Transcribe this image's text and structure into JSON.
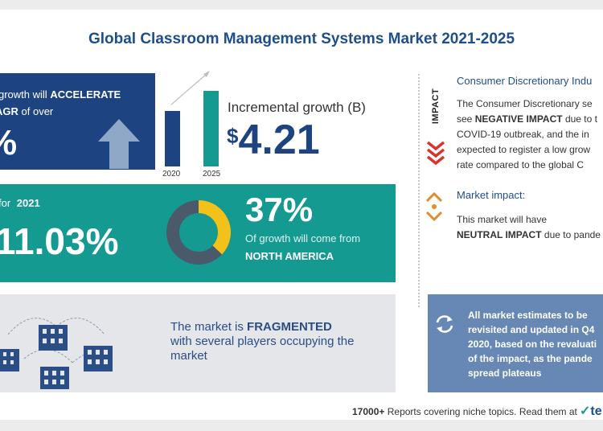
{
  "title": "Global Classroom Management Systems Market 2021-2025",
  "growth": {
    "line1_pre": "growth will",
    "line1_bold": "ACCELERATE",
    "line2_bold": "AGR",
    "line2_post": "of over",
    "value": "%"
  },
  "bars_chart": {
    "labels": [
      "2020",
      "2025"
    ]
  },
  "incremental": {
    "label": "Incremental growth (B)",
    "currency": "$",
    "value": "4.21"
  },
  "yoy": {
    "label": "for",
    "year": "2021",
    "value": "11.03%"
  },
  "region": {
    "percent": "37%",
    "text": "Of growth will come from",
    "name": "NORTH AMERICA",
    "share": 0.37
  },
  "fragmented": {
    "pre": "The market is",
    "bold": "FRAGMENTED",
    "line2": "with several players occupying the",
    "line3": "market"
  },
  "impact": {
    "tag": "IMPACT",
    "title": "Consumer Discretionary Indu",
    "l1": "The Consumer Discretionary se",
    "l2_pre": "see",
    "l2_bold": "NEGATIVE IMPACT",
    "l2_post": "due to t",
    "l3": "COVID-19 outbreak, and the in",
    "l4": "expected to register a low grow",
    "l5": "rate compared to the global C"
  },
  "market_impact": {
    "title": "Market impact:",
    "l1": "This market will have",
    "l2_bold": "NEUTRAL IMPACT",
    "l2_post": "due to pande"
  },
  "note": {
    "l1": "All market estimates to be",
    "l2": "revisited and updated in Q4",
    "l3": "2020, based on the revaluati",
    "l4": "of the impact, as the pande",
    "l5": "spread plateaus"
  },
  "footer": {
    "bold": "17000+",
    "text": "Reports covering niche topics. Read them at",
    "brand": "te"
  },
  "colors": {
    "navy": "#1d4480",
    "teal": "#149a91",
    "gold": "#f2c21a",
    "red": "#d9342b",
    "orange": "#e38a2b"
  }
}
